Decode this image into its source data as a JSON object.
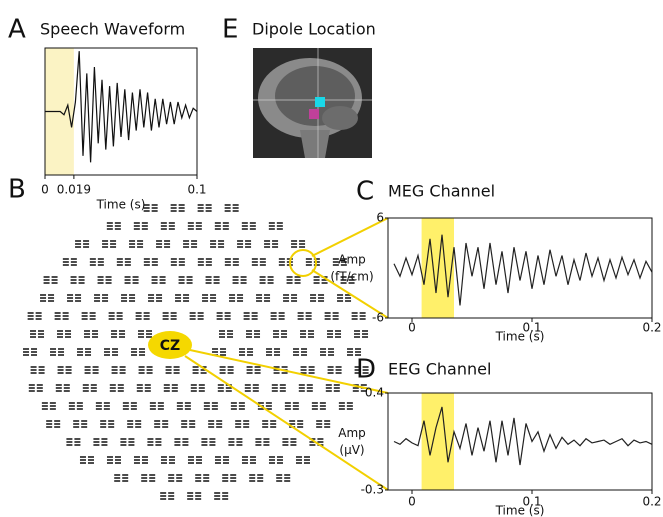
{
  "chart_data": [
    {
      "type": "line",
      "panel": "A",
      "title": "Speech Waveform",
      "xlabel": "Time (s)",
      "xlim": [
        0,
        0.1
      ],
      "xticks": [
        0,
        0.019,
        0.1
      ],
      "ylim": [
        -1,
        1
      ],
      "highlight": [
        0,
        0.019
      ],
      "color": "#111111",
      "x": [
        0,
        0.0025,
        0.005,
        0.0075,
        0.01,
        0.0125,
        0.015,
        0.0175,
        0.02,
        0.0225,
        0.025,
        0.0275,
        0.03,
        0.0325,
        0.035,
        0.0375,
        0.04,
        0.0425,
        0.045,
        0.0475,
        0.05,
        0.0525,
        0.055,
        0.0575,
        0.06,
        0.0625,
        0.065,
        0.0675,
        0.07,
        0.0725,
        0.075,
        0.0775,
        0.08,
        0.0825,
        0.085,
        0.0875,
        0.09,
        0.0925,
        0.095,
        0.0975,
        0.1
      ],
      "values": [
        0,
        0,
        0,
        0,
        0,
        -0.05,
        0.1,
        -0.25,
        0.15,
        0.95,
        -0.7,
        0.6,
        -0.8,
        0.7,
        -0.5,
        0.5,
        -0.6,
        0.4,
        -0.55,
        0.45,
        -0.4,
        0.35,
        -0.45,
        0.3,
        -0.3,
        0.35,
        -0.25,
        0.3,
        -0.3,
        0.2,
        -0.25,
        0.2,
        -0.2,
        0.15,
        -0.2,
        0.15,
        -0.1,
        0.1,
        -0.1,
        0.05,
        0
      ]
    },
    {
      "type": "line",
      "panel": "C",
      "title": "MEG Channel",
      "xlabel": "Time (s)",
      "ylabel": [
        "Amp",
        "(fT/cm)"
      ],
      "xlim": [
        -0.02,
        0.2
      ],
      "xticks": [
        0,
        0.1,
        0.2
      ],
      "ylim": [
        -6,
        6
      ],
      "yticks": [
        -6,
        6
      ],
      "highlight": [
        0.008,
        0.035
      ],
      "color": "#222222",
      "x": [
        -0.015,
        -0.01,
        -0.005,
        0,
        0.005,
        0.01,
        0.015,
        0.02,
        0.025,
        0.03,
        0.035,
        0.04,
        0.045,
        0.05,
        0.055,
        0.06,
        0.065,
        0.07,
        0.075,
        0.08,
        0.085,
        0.09,
        0.095,
        0.1,
        0.105,
        0.11,
        0.115,
        0.12,
        0.125,
        0.13,
        0.135,
        0.14,
        0.145,
        0.15,
        0.155,
        0.16,
        0.165,
        0.17,
        0.175,
        0.18,
        0.185,
        0.19,
        0.195,
        0.2
      ],
      "values": [
        0.5,
        -1,
        1.2,
        -0.8,
        1.5,
        -2,
        3.5,
        -3,
        4,
        -3.5,
        2.5,
        -4.5,
        3,
        -1,
        2.5,
        -2.5,
        3,
        -2,
        2,
        -3,
        2.5,
        -1.5,
        2,
        -2.5,
        1.5,
        -2,
        2.2,
        -1,
        1.5,
        -2,
        1,
        -1.5,
        1.8,
        -1,
        1.2,
        -1.5,
        1,
        -1.2,
        1.3,
        -0.8,
        1,
        -1.2,
        0.8,
        -0.5
      ]
    },
    {
      "type": "line",
      "panel": "D",
      "title": "EEG Channel",
      "xlabel": "Time (s)",
      "ylabel": [
        "Amp",
        "(μV)"
      ],
      "xlim": [
        -0.02,
        0.2
      ],
      "xticks": [
        0,
        0.1,
        0.2
      ],
      "ylim": [
        -0.3,
        0.4
      ],
      "yticks": [
        -0.3,
        0.4
      ],
      "highlight": [
        0.008,
        0.035
      ],
      "color": "#222222",
      "x": [
        -0.015,
        -0.01,
        -0.005,
        0,
        0.005,
        0.01,
        0.015,
        0.02,
        0.025,
        0.03,
        0.035,
        0.04,
        0.045,
        0.05,
        0.055,
        0.06,
        0.065,
        0.07,
        0.075,
        0.08,
        0.085,
        0.09,
        0.095,
        0.1,
        0.105,
        0.11,
        0.115,
        0.12,
        0.125,
        0.13,
        0.135,
        0.14,
        0.145,
        0.15,
        0.155,
        0.16,
        0.165,
        0.17,
        0.175,
        0.18,
        0.185,
        0.19,
        0.195,
        0.2
      ],
      "values": [
        0.05,
        0.03,
        0.07,
        0.04,
        0.02,
        0.2,
        -0.05,
        0.15,
        0.3,
        -0.1,
        0.12,
        0,
        0.18,
        -0.05,
        0.15,
        -0.02,
        0.2,
        -0.1,
        0.2,
        -0.05,
        0.22,
        -0.12,
        0.18,
        0.05,
        0.12,
        -0.02,
        0.1,
        0,
        0.08,
        0.03,
        0.06,
        0.02,
        0.07,
        0.04,
        0.05,
        0.06,
        0.03,
        0.05,
        0.07,
        0.02,
        0.06,
        0.04,
        0.05,
        0.03
      ]
    }
  ],
  "panels": {
    "sensor_array": {
      "panel": "B",
      "sensor_label": "CZ"
    },
    "dipole": {
      "panel": "E",
      "title": "Dipole Location"
    }
  }
}
